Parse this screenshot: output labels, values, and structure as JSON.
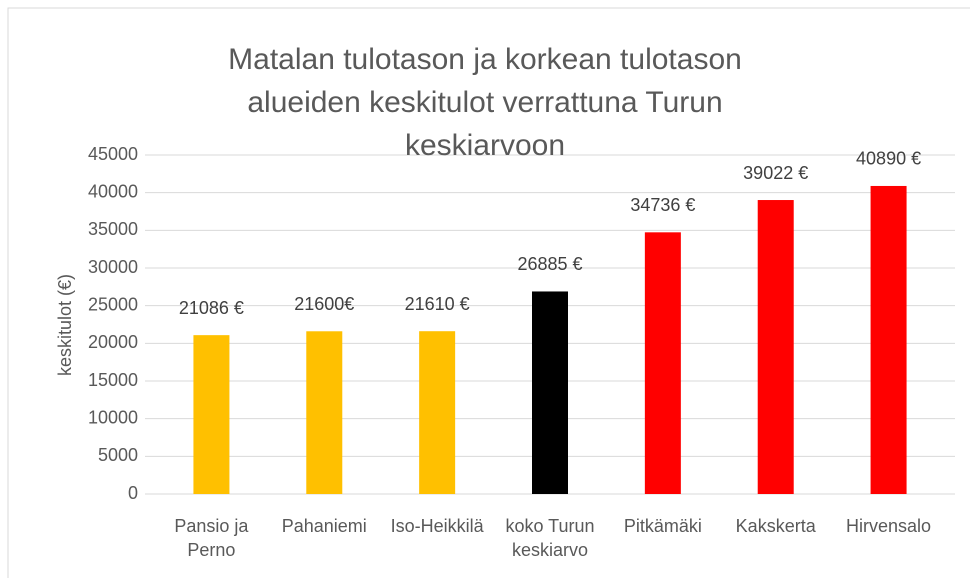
{
  "chart_data": {
    "type": "bar",
    "title": "Matalan tulotason ja korkean tulotason alueiden keskitulot verrattuna Turun keskiarvoon",
    "y_label": "keskitulot (€)",
    "categories": [
      "Pansio ja\nPerno",
      "Pahaniemi",
      "Iso-Heikkilä",
      "koko Turun\nkeskiarvo",
      "Pitkämäki",
      "Kakskerta",
      "Hirvensalo"
    ],
    "values": [
      21086,
      21600,
      21610,
      26885,
      34736,
      39022,
      40890
    ],
    "value_labels": [
      "21086 €",
      "21600€",
      "21610 €",
      "26885 €",
      "34736 €",
      "39022 €",
      "40890 €"
    ],
    "colors": [
      "#FFC000",
      "#FFC000",
      "#FFC000",
      "#000000",
      "#FF0000",
      "#FF0000",
      "#FF0000"
    ],
    "ylim": [
      0,
      45000
    ],
    "yticks": [
      0,
      5000,
      10000,
      15000,
      20000,
      25000,
      30000,
      35000,
      40000,
      45000
    ],
    "grid": true
  }
}
